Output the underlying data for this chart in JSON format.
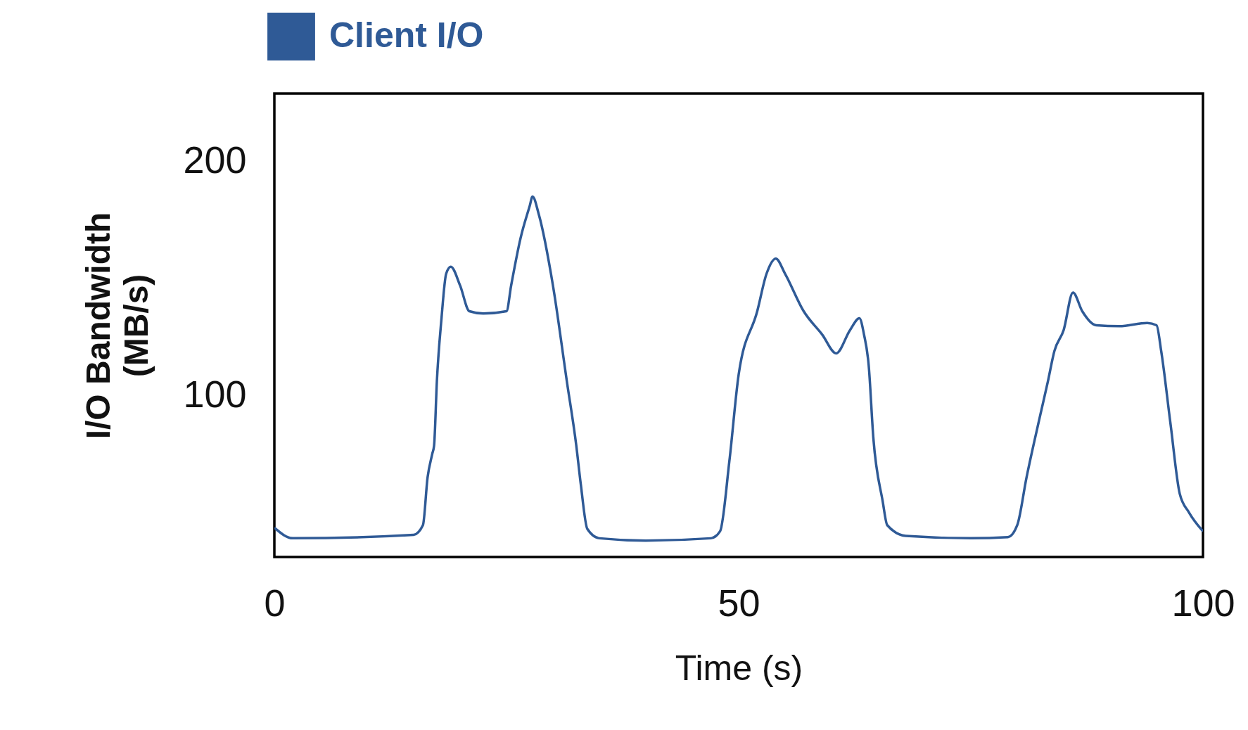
{
  "chart_data": {
    "type": "line",
    "xlabel": "Time (s)",
    "ylabel": "I/O Bandwidth\n(MB/s)",
    "xlim": [
      0,
      100
    ],
    "ylim": [
      31,
      229
    ],
    "xticks": [
      0,
      50,
      100
    ],
    "yticks": [
      100,
      200
    ],
    "grid": false,
    "legend": "top left",
    "marker": "none",
    "line_style": "solid",
    "x": [
      0,
      2,
      15,
      16,
      16.5,
      17,
      17.2,
      17.5,
      18,
      18.5,
      19,
      20,
      21,
      22.5,
      25,
      25.5,
      26.5,
      27.5,
      27.8,
      28.5,
      30,
      31.5,
      32.5,
      33,
      33.7,
      35,
      40,
      47,
      48,
      49,
      50,
      52,
      53,
      54,
      55,
      57,
      59,
      60.5,
      62,
      63,
      63.5,
      64,
      64.5,
      65.5,
      66,
      68,
      75,
      79,
      80,
      81,
      82.5,
      83.3,
      84,
      85,
      86,
      87,
      88.5,
      91,
      94,
      95,
      95.5,
      96.5,
      97.5,
      98.5,
      100
    ],
    "series": [
      {
        "name": "Client I/O",
        "color": "#2f5a96",
        "values": [
          43.5,
          39,
          40.5,
          44.6,
          65,
          75,
          78.6,
          106,
          133,
          152,
          155,
          147,
          136,
          135,
          136,
          147,
          167,
          181,
          185,
          177,
          147,
          106,
          79,
          62,
          43,
          39,
          38,
          39,
          42,
          72,
          109,
          136,
          152,
          158.5,
          152,
          136,
          126,
          118,
          128,
          133,
          126,
          113,
          82,
          55,
          44.6,
          40,
          39,
          39.5,
          44.6,
          65,
          92,
          106,
          119,
          128,
          144,
          136,
          130,
          129.6,
          131,
          130,
          119,
          88,
          58,
          50,
          42
        ]
      }
    ]
  }
}
